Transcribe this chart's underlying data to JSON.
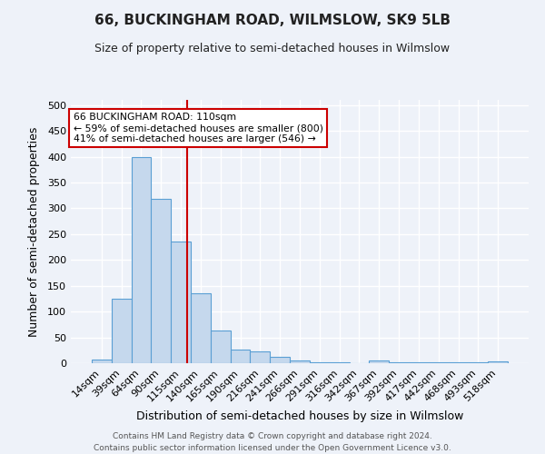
{
  "title": "66, BUCKINGHAM ROAD, WILMSLOW, SK9 5LB",
  "subtitle": "Size of property relative to semi-detached houses in Wilmslow",
  "xlabel": "Distribution of semi-detached houses by size in Wilmslow",
  "ylabel": "Number of semi-detached properties",
  "footer_line1": "Contains HM Land Registry data © Crown copyright and database right 2024.",
  "footer_line2": "Contains public sector information licensed under the Open Government Licence v3.0.",
  "bar_labels": [
    "14sqm",
    "39sqm",
    "64sqm",
    "90sqm",
    "115sqm",
    "140sqm",
    "165sqm",
    "190sqm",
    "216sqm",
    "241sqm",
    "266sqm",
    "291sqm",
    "316sqm",
    "342sqm",
    "367sqm",
    "392sqm",
    "417sqm",
    "442sqm",
    "468sqm",
    "493sqm",
    "518sqm"
  ],
  "bar_values": [
    7,
    125,
    400,
    318,
    235,
    135,
    63,
    26,
    22,
    13,
    5,
    2,
    1,
    0,
    5,
    1,
    1,
    1,
    1,
    1,
    3
  ],
  "bar_color": "#c5d8ed",
  "bar_edge_color": "#5a9fd4",
  "background_color": "#eef2f9",
  "grid_color": "#ffffff",
  "annotation_text_line1": "66 BUCKINGHAM ROAD: 110sqm",
  "annotation_text_line2": "← 59% of semi-detached houses are smaller (800)",
  "annotation_text_line3": "41% of semi-detached houses are larger (546) →",
  "red_line_color": "#cc0000",
  "annotation_box_color": "#ffffff",
  "annotation_box_edge_color": "#cc0000",
  "ylim": [
    0,
    510
  ],
  "red_line_bar_index": 4.3
}
